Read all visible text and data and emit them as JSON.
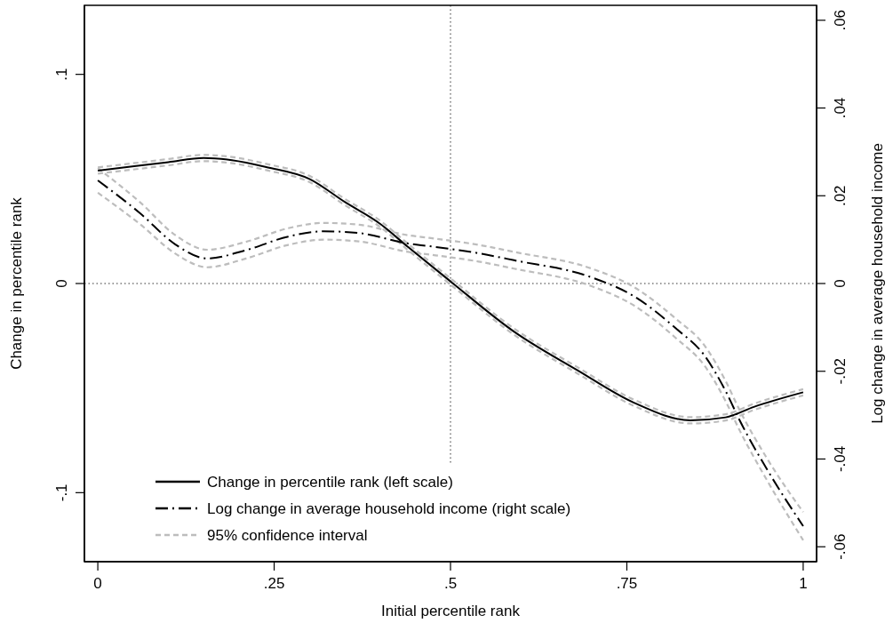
{
  "chart_data": {
    "type": "line",
    "xlabel": "Initial percentile rank",
    "ylabel": "Change in percentile rank",
    "y2label": "Log change in average household income",
    "xlim": [
      -0.019,
      1.019
    ],
    "xticks": [
      0,
      {
        "value": 0.25,
        "label": ".25"
      },
      {
        "value": 0.5,
        "label": ".5"
      },
      {
        "value": 0.75,
        "label": ".75"
      },
      1
    ],
    "ylim": [
      -0.133,
      0.133
    ],
    "yticks": [
      {
        "value": -0.1,
        "label": "-.1"
      },
      0,
      {
        "value": 0.1,
        "label": ".1"
      }
    ],
    "y2lim": [
      -0.0634,
      0.0634
    ],
    "y2ticks": [
      {
        "value": -0.06,
        "label": "-.06"
      },
      {
        "value": -0.04,
        "label": "-.04"
      },
      {
        "value": -0.02,
        "label": "-.02"
      },
      0,
      {
        "value": 0.02,
        "label": ".02"
      },
      {
        "value": 0.04,
        "label": ".04"
      },
      {
        "value": 0.06,
        "label": ".06"
      }
    ],
    "grid": false,
    "legend": "bottom left",
    "ref_lines": [
      {
        "axis": "x",
        "value": 0.5,
        "line_style": "dotted",
        "color": "#333333"
      },
      {
        "axis": "y",
        "value": 0,
        "line_style": "dotted",
        "color": "#333333"
      }
    ],
    "series": [
      {
        "name": "Change in percentile rank (left scale)",
        "color": "#000000",
        "line_style": "solid",
        "x": [
          0,
          0.1,
          0.15,
          0.19,
          0.24,
          0.3,
          0.35,
          0.4,
          0.44,
          0.5,
          0.59,
          0.68,
          0.76,
          0.84,
          0.89,
          0.93,
          1
        ],
        "values": [
          0.054,
          0.058,
          0.06,
          0.059,
          0.0556,
          0.05,
          0.039,
          0.0286,
          0.0174,
          0.001,
          -0.023,
          -0.0415,
          -0.057,
          -0.0654,
          -0.064,
          -0.059,
          -0.052
        ]
      },
      {
        "name": "Log change in average household income (right scale)",
        "color": "#000000",
        "line_style": "dashdot",
        "axis": "y2",
        "x": [
          0,
          0.06,
          0.11,
          0.155,
          0.21,
          0.27,
          0.32,
          0.37,
          0.44,
          0.47,
          0.54,
          0.59,
          0.7,
          0.76,
          0.82,
          0.86,
          0.89,
          0.91,
          0.95,
          1
        ],
        "values": [
          0.0235,
          0.016,
          0.0089,
          0.0057,
          0.0076,
          0.0107,
          0.0119,
          0.0115,
          0.0091,
          0.0085,
          0.0069,
          0.0053,
          0.0014,
          -0.0029,
          -0.0103,
          -0.0164,
          -0.0245,
          -0.0312,
          -0.0427,
          -0.0553
        ]
      },
      {
        "name": "95% confidence interval",
        "color": "#bdbdbd",
        "line_style": "dashed",
        "x": [
          0,
          0.1,
          0.15,
          0.19,
          0.24,
          0.3,
          0.35,
          0.4,
          0.44,
          0.5,
          0.59,
          0.68,
          0.76,
          0.84,
          0.89,
          0.93,
          1
        ],
        "values": [
          0.0525,
          0.0565,
          0.0585,
          0.0575,
          0.0541,
          0.0485,
          0.0375,
          0.0271,
          0.0159,
          -0.0005,
          -0.0245,
          -0.043,
          -0.0585,
          -0.0669,
          -0.0655,
          -0.0605,
          -0.0535
        ]
      },
      {
        "color": "#bdbdbd",
        "line_style": "dashed",
        "x": [
          0,
          0.1,
          0.15,
          0.19,
          0.24,
          0.3,
          0.35,
          0.4,
          0.44,
          0.5,
          0.59,
          0.68,
          0.76,
          0.84,
          0.89,
          0.93,
          1
        ],
        "values": [
          0.0555,
          0.0595,
          0.0615,
          0.0605,
          0.0571,
          0.0515,
          0.0405,
          0.0301,
          0.0189,
          0.0025,
          -0.0215,
          -0.04,
          -0.0555,
          -0.0639,
          -0.0625,
          -0.0575,
          -0.0505
        ]
      },
      {
        "color": "#bdbdbd",
        "line_style": "dashed",
        "axis": "y2",
        "x": [
          0,
          0.06,
          0.11,
          0.155,
          0.21,
          0.27,
          0.32,
          0.37,
          0.44,
          0.47,
          0.54,
          0.59,
          0.7,
          0.76,
          0.82,
          0.86,
          0.89,
          0.91,
          0.95,
          1
        ],
        "values": [
          0.0207,
          0.0135,
          0.0068,
          0.0037,
          0.0057,
          0.0088,
          0.01,
          0.0096,
          0.0072,
          0.0066,
          0.005,
          0.0034,
          -0.0006,
          -0.005,
          -0.0125,
          -0.0187,
          -0.0268,
          -0.0335,
          -0.0452,
          -0.0585
        ]
      },
      {
        "color": "#bdbdbd",
        "line_style": "dashed",
        "axis": "y2",
        "x": [
          0,
          0.06,
          0.11,
          0.155,
          0.21,
          0.27,
          0.32,
          0.37,
          0.44,
          0.47,
          0.54,
          0.59,
          0.7,
          0.76,
          0.82,
          0.86,
          0.89,
          0.91,
          0.95,
          1
        ],
        "values": [
          0.0263,
          0.0185,
          0.011,
          0.0077,
          0.0095,
          0.0126,
          0.0138,
          0.0134,
          0.011,
          0.0104,
          0.0088,
          0.0072,
          0.0034,
          -0.0008,
          -0.0081,
          -0.0141,
          -0.0222,
          -0.0289,
          -0.0402,
          -0.0521
        ]
      }
    ]
  }
}
